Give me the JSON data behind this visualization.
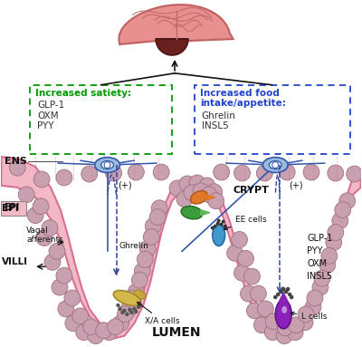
{
  "bg_color": "#ffffff",
  "intestine_fill": "#f2b8c6",
  "intestine_edge": "#d87090",
  "cell_fill": "#c8a0b0",
  "cell_edge": "#a07080",
  "neuron_fill": "#99bbdd",
  "neuron_edge": "#3355aa",
  "neuron_inner": "#ddeeff",
  "axon_color": "#3355aa",
  "brain_fill": "#e89090",
  "brain_edge": "#c06060",
  "brainstem_fill": "#6b2020",
  "satiety_color": "#009900",
  "appetite_color": "#2244cc",
  "arrow_color": "#111111",
  "dashed_color": "#334499",
  "satiety_title": "Increased satiety:",
  "satiety_items": [
    "GLP-1",
    "OXM",
    "PYY"
  ],
  "appetite_title": "Increased food\nintake/appetite:",
  "appetite_items": [
    "Ghrelin",
    "INSL5"
  ],
  "label_ENS": "ENS",
  "label_EPI": "EPI",
  "label_VILLI": "VILLI",
  "label_CRYPT": "CRYPT",
  "label_LUMEN": "LUMEN",
  "label_vagal": "Vagal\nafferents",
  "label_ghrelin": "Ghrelin",
  "label_EEcells": "EE cells",
  "label_XAcells": "X/A cells",
  "label_Lcells": "L cells",
  "label_rightside": "GLP-1\nPYY\nOXM\nINSL5",
  "label_plus": "(+)"
}
